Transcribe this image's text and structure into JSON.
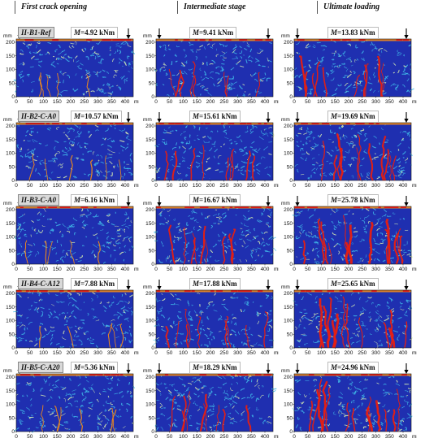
{
  "columns": [
    "First crack opening",
    "Intermediate stage",
    "Ultimate loading"
  ],
  "axis": {
    "unit": "mm",
    "y_ticks": [
      "0",
      "50",
      "100",
      "150",
      "200"
    ],
    "x_ticks": [
      "0",
      "50",
      "100",
      "150",
      "200",
      "250",
      "300",
      "350",
      "400"
    ]
  },
  "specimens": [
    {
      "label": "II-B1-Ref",
      "moments": [
        "4.92 kNm",
        "9.41 kNm",
        "13.83 kNm"
      ],
      "crack_level": [
        0.15,
        0.45,
        0.65
      ]
    },
    {
      "label": "II-B2-C-A0",
      "moments": [
        "10.57 kNm",
        "15.61 kNm",
        "19.69 kNm"
      ],
      "crack_level": [
        0.2,
        0.5,
        0.8
      ]
    },
    {
      "label": "II-B3-C-A0",
      "moments": [
        "6.16 kNm",
        "16.67 kNm",
        "25.78 kNm"
      ],
      "crack_level": [
        0.15,
        0.55,
        0.95
      ]
    },
    {
      "label": "II-B4-C-A12",
      "moments": [
        "7.88 kNm",
        "17.88 kNm",
        "25.65 kNm"
      ],
      "crack_level": [
        0.15,
        0.55,
        0.95
      ]
    },
    {
      "label": "II-B5-C-A20",
      "moments": [
        "5.36 kNm",
        "18.29 kNm",
        "24.96 kNm"
      ],
      "crack_level": [
        0.2,
        0.6,
        0.95
      ]
    }
  ],
  "colors": {
    "background": "#1f2fb0",
    "mid": "#3fb7e8",
    "light": "#d9f0b0",
    "crack": "#e81f10",
    "edge": "#f08a1a"
  },
  "icons": {
    "load": "arrow-down-icon"
  }
}
